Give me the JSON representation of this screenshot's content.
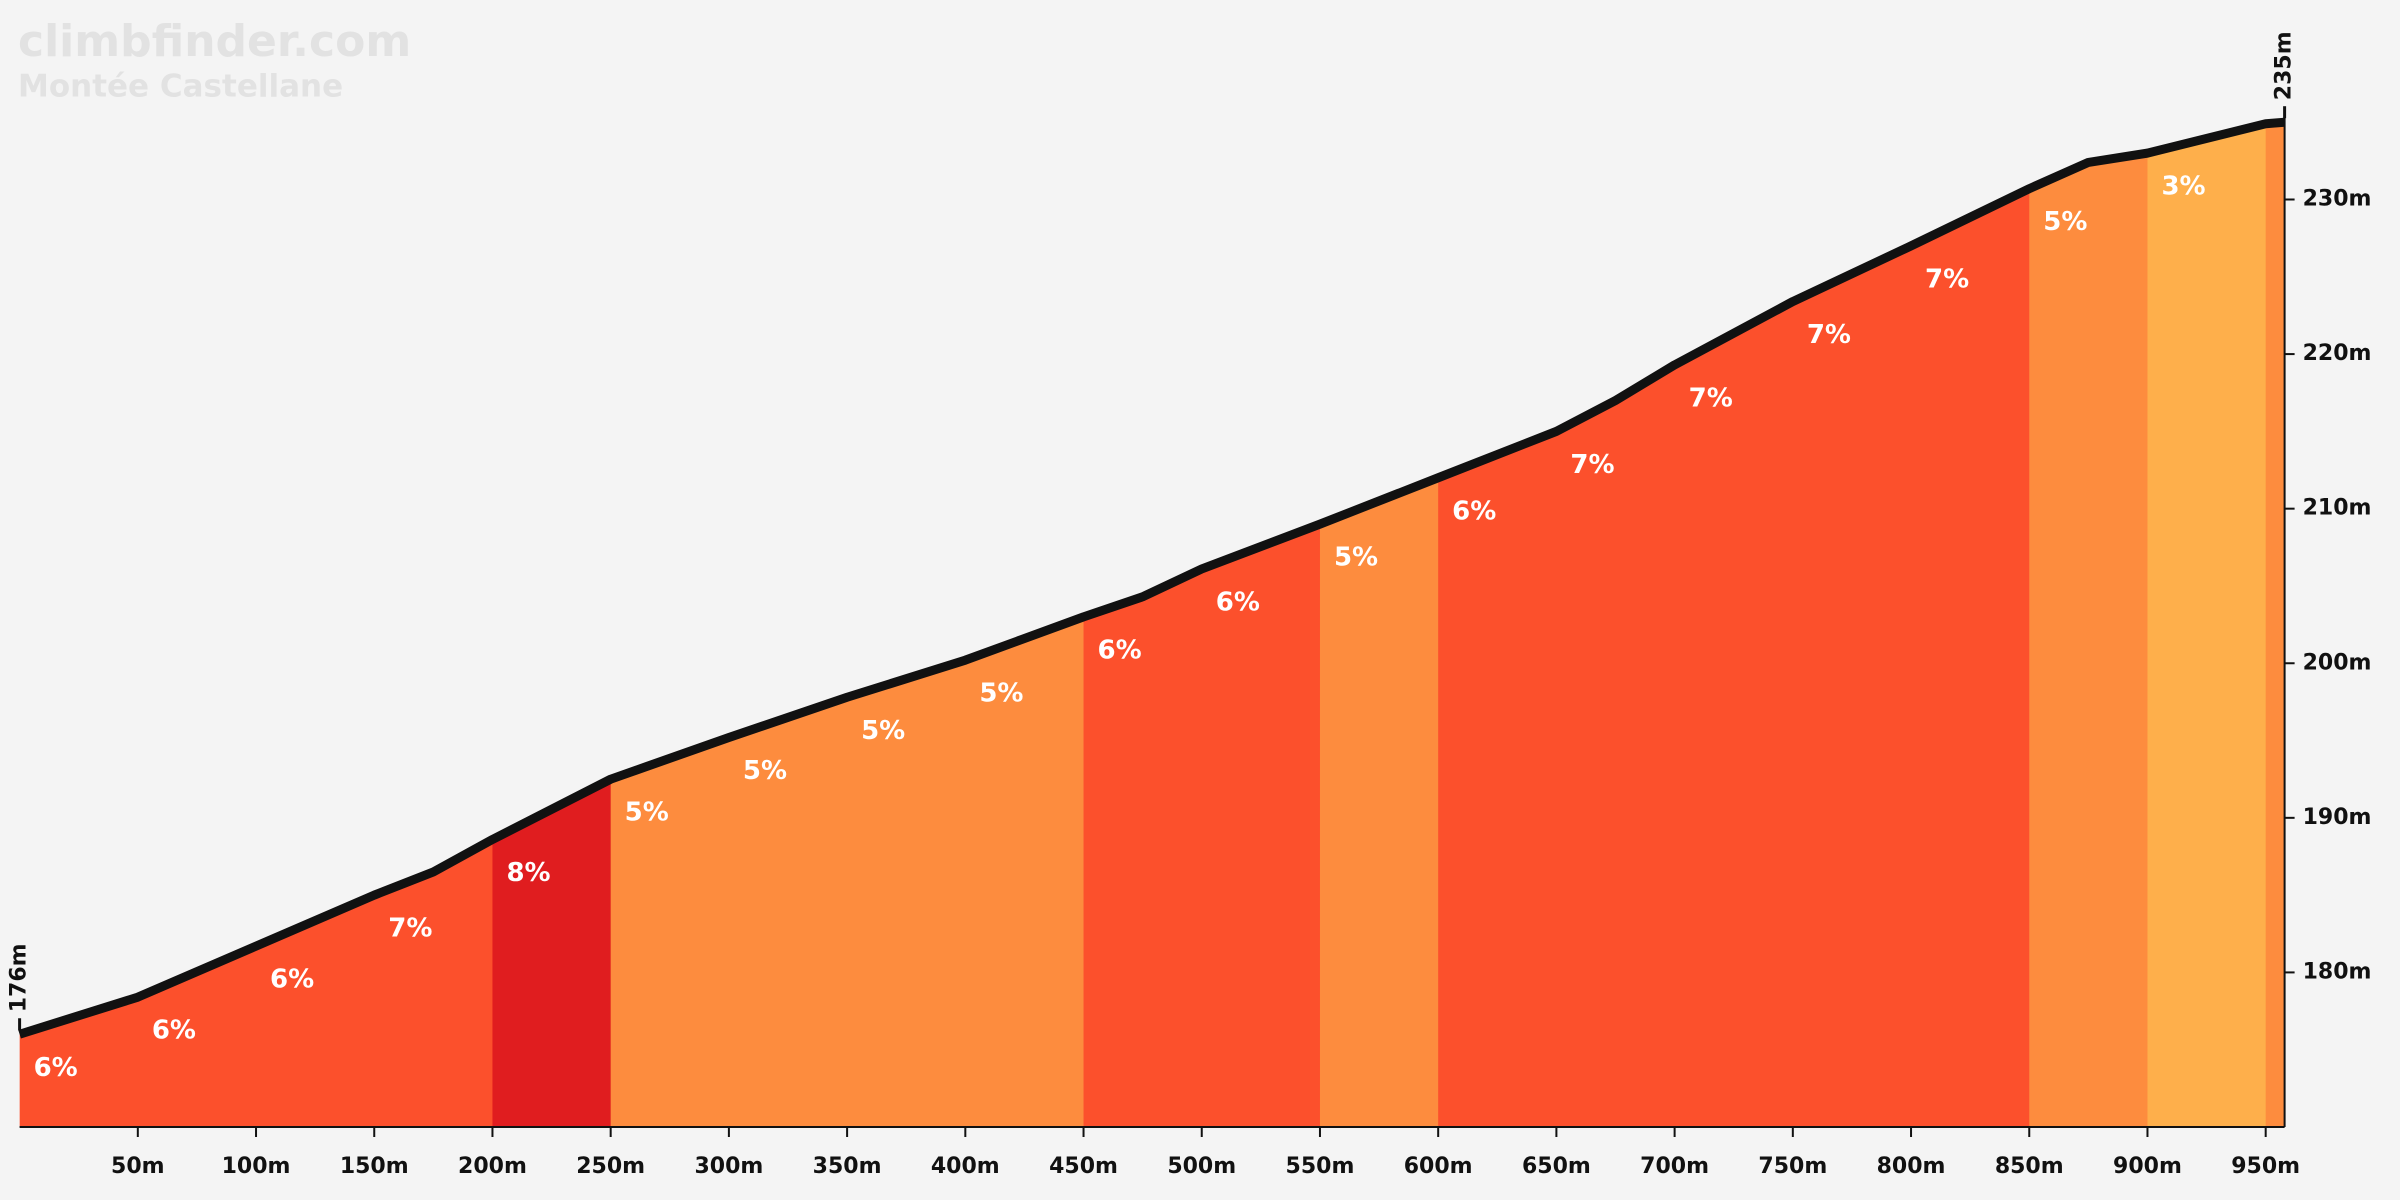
{
  "chart_data": {
    "type": "elevation",
    "title": "climbfinder.com",
    "subtitle": "Montée Castellane",
    "x": [
      0,
      50,
      100,
      150,
      175,
      200,
      250,
      300,
      350,
      400,
      450,
      475,
      500,
      550,
      600,
      650,
      675,
      700,
      750,
      800,
      850,
      875,
      900,
      950,
      958
    ],
    "values": [
      176,
      178.4,
      181.7,
      185,
      186.5,
      188.6,
      192.5,
      195.2,
      197.8,
      200.2,
      203,
      204.3,
      206.1,
      209,
      212,
      215,
      217,
      219.3,
      223.4,
      227,
      230.7,
      232.4,
      233,
      234.9,
      235
    ],
    "value_labels": [
      "176m",
      null,
      null,
      null,
      null,
      null,
      null,
      null,
      null,
      null,
      null,
      null,
      null,
      null,
      null,
      null,
      null,
      null,
      null,
      null,
      null,
      null,
      null,
      null,
      "235m"
    ],
    "line_color": "#111111",
    "segments": [
      {
        "start": 0,
        "end": 50,
        "value": 6,
        "label": "6%",
        "color": "#fc502c"
      },
      {
        "start": 50,
        "end": 100,
        "value": 6,
        "label": "6%",
        "color": "#fc502c"
      },
      {
        "start": 100,
        "end": 150,
        "value": 6,
        "label": "6%",
        "color": "#fc502c"
      },
      {
        "start": 150,
        "end": 200,
        "value": 7,
        "label": "7%",
        "color": "#fc502c"
      },
      {
        "start": 200,
        "end": 250,
        "value": 8,
        "label": "8%",
        "color": "#e01d1f"
      },
      {
        "start": 250,
        "end": 300,
        "value": 5,
        "label": "5%",
        "color": "#fd8c3e"
      },
      {
        "start": 300,
        "end": 350,
        "value": 5,
        "label": "5%",
        "color": "#fd8c3e"
      },
      {
        "start": 350,
        "end": 400,
        "value": 5,
        "label": "5%",
        "color": "#fd8c3e"
      },
      {
        "start": 400,
        "end": 450,
        "value": 5,
        "label": "5%",
        "color": "#fd8c3e"
      },
      {
        "start": 450,
        "end": 500,
        "value": 6,
        "label": "6%",
        "color": "#fc502c"
      },
      {
        "start": 500,
        "end": 550,
        "value": 6,
        "label": "6%",
        "color": "#fc502c"
      },
      {
        "start": 550,
        "end": 600,
        "value": 5,
        "label": "5%",
        "color": "#fd8c3e"
      },
      {
        "start": 600,
        "end": 650,
        "value": 6,
        "label": "6%",
        "color": "#fc502c"
      },
      {
        "start": 650,
        "end": 700,
        "value": 7,
        "label": "7%",
        "color": "#fc502c"
      },
      {
        "start": 700,
        "end": 750,
        "value": 7,
        "label": "7%",
        "color": "#fc502c"
      },
      {
        "start": 750,
        "end": 800,
        "value": 7,
        "label": "7%",
        "color": "#fc502c"
      },
      {
        "start": 800,
        "end": 850,
        "value": 7,
        "label": "7%",
        "color": "#fc502c"
      },
      {
        "start": 850,
        "end": 900,
        "value": 5,
        "label": "5%",
        "color": "#fd8c3e"
      },
      {
        "start": 900,
        "end": 950,
        "value": 3,
        "label": "3%",
        "color": "#feaf4b"
      },
      {
        "start": 950,
        "end": 958,
        "color": "#fd8c3e"
      }
    ],
    "xlim": [
      0,
      958
    ],
    "ylim": [
      170,
      242
    ],
    "xticks": [
      {
        "value": 50,
        "label": "50m"
      },
      {
        "value": 100,
        "label": "100m"
      },
      {
        "value": 150,
        "label": "150m"
      },
      {
        "value": 200,
        "label": "200m"
      },
      {
        "value": 250,
        "label": "250m"
      },
      {
        "value": 300,
        "label": "300m"
      },
      {
        "value": 350,
        "label": "350m"
      },
      {
        "value": 400,
        "label": "400m"
      },
      {
        "value": 450,
        "label": "450m"
      },
      {
        "value": 500,
        "label": "500m"
      },
      {
        "value": 550,
        "label": "550m"
      },
      {
        "value": 600,
        "label": "600m"
      },
      {
        "value": 650,
        "label": "650m"
      },
      {
        "value": 700,
        "label": "700m"
      },
      {
        "value": 750,
        "label": "750m"
      },
      {
        "value": 800,
        "label": "800m"
      },
      {
        "value": 850,
        "label": "850m"
      },
      {
        "value": 900,
        "label": "900m"
      },
      {
        "value": 950,
        "label": "950m"
      }
    ],
    "yticks": [
      {
        "value": 180,
        "label": "180m"
      },
      {
        "value": 190,
        "label": "190m"
      },
      {
        "value": 200,
        "label": "200m"
      },
      {
        "value": 210,
        "label": "210m"
      },
      {
        "value": 220,
        "label": "220m"
      },
      {
        "value": 230,
        "label": "230m"
      }
    ]
  }
}
